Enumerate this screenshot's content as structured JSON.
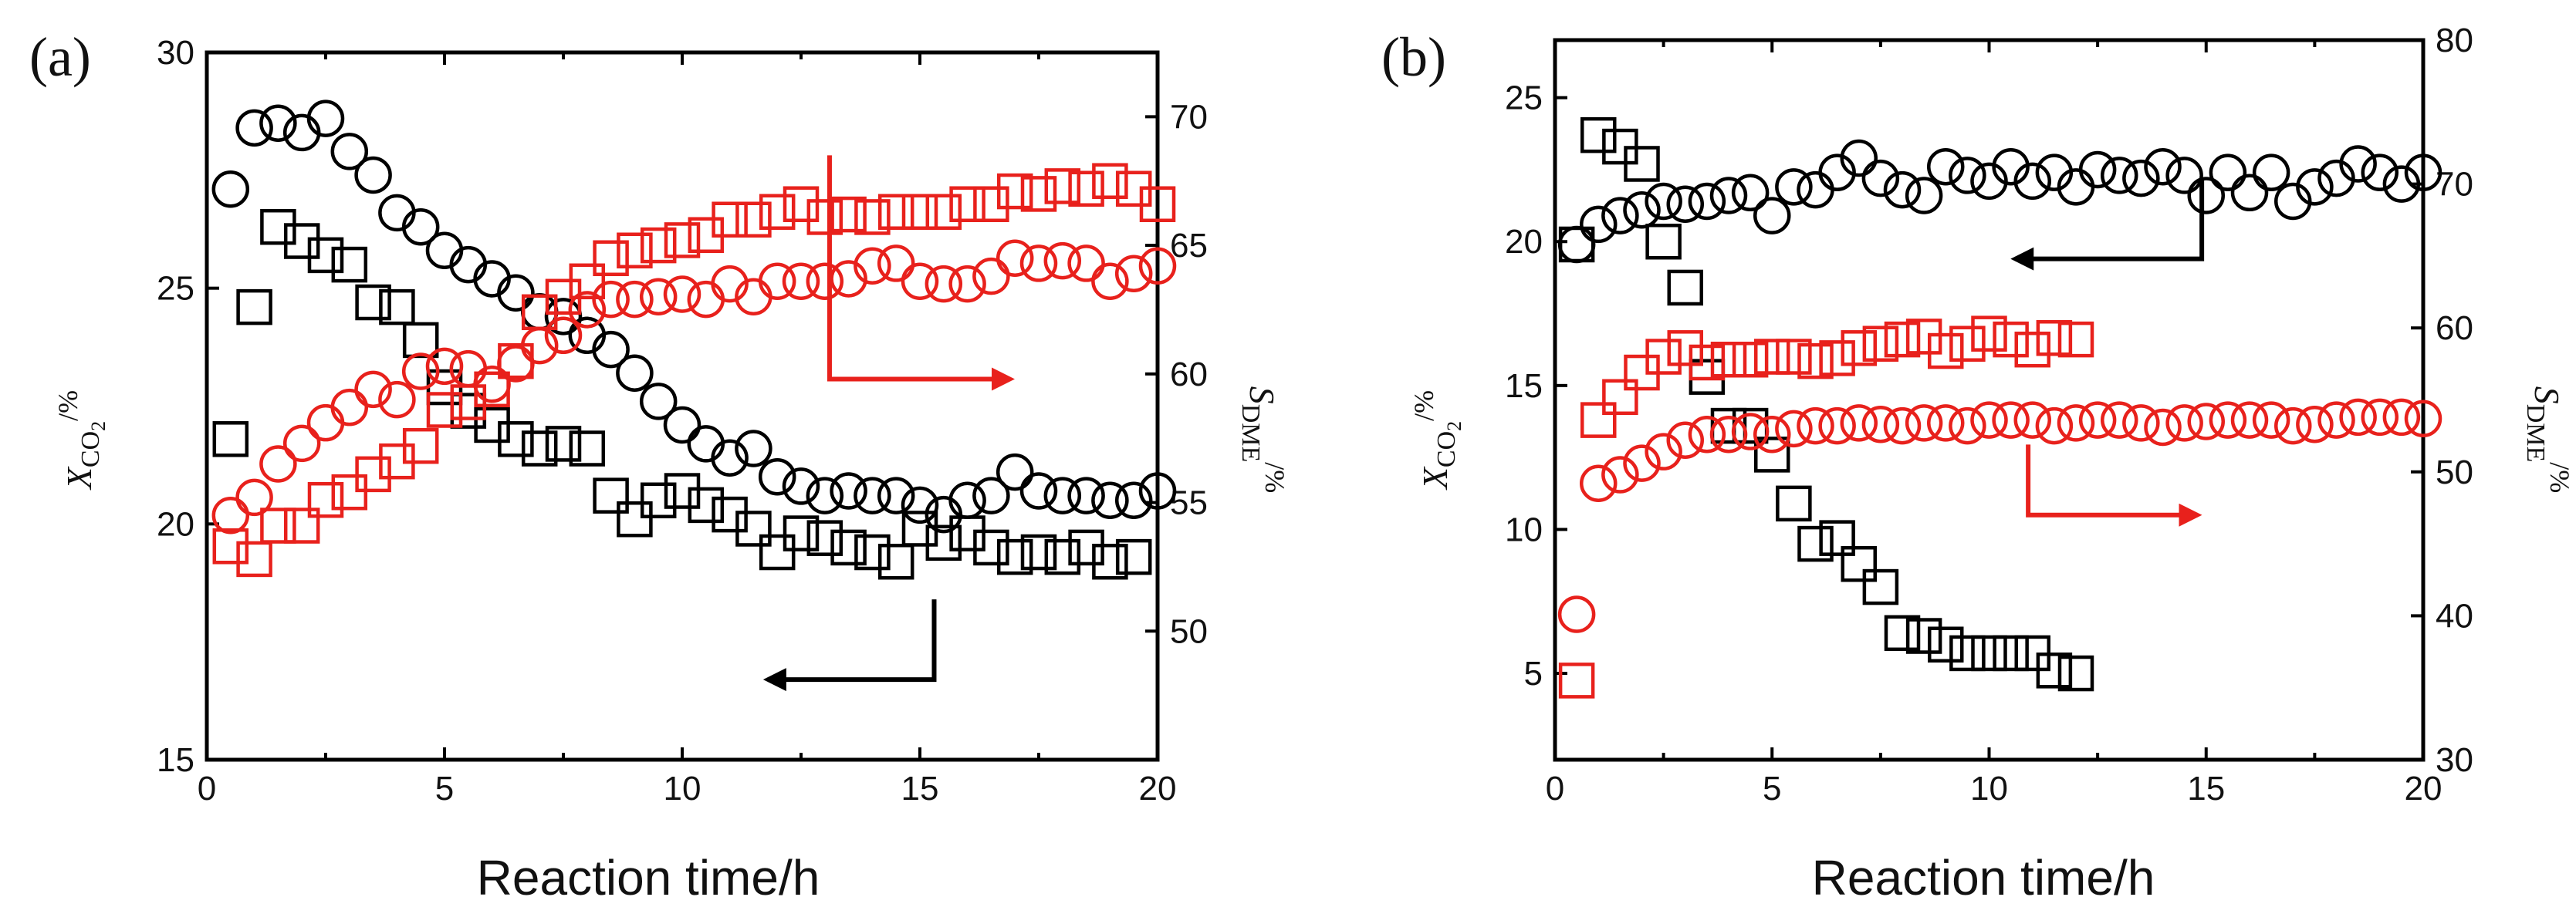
{
  "colors": {
    "black": "#000000",
    "red": "#e8211c"
  },
  "chart_data": [
    {
      "id": "a",
      "type": "scatter",
      "panel_label": "(a)",
      "xlabel": "Reaction time/h",
      "ylabel_left": {
        "main": "X",
        "sub": "CO",
        "sub2": "2",
        "unit": "/%"
      },
      "ylabel_right": {
        "main": "S",
        "sub": "DME",
        "unit": "/%"
      },
      "xlim": [
        0,
        20
      ],
      "ylim_left": [
        15,
        30
      ],
      "ylim_right": [
        45,
        72.5
      ],
      "xticks": [
        0,
        5,
        10,
        15,
        20
      ],
      "yticks_left": [
        15,
        20,
        25,
        30
      ],
      "yticks_right": [
        50,
        55,
        60,
        65,
        70
      ],
      "series": [
        {
          "name": "XCO2 circles",
          "marker": "circle",
          "color": "#000000",
          "axis": "left",
          "x": [
            0.5,
            1.0,
            1.5,
            2.0,
            2.5,
            3.0,
            3.5,
            4.0,
            4.5,
            5.0,
            5.5,
            6.0,
            6.5,
            7.0,
            7.5,
            8.0,
            8.5,
            9.0,
            9.5,
            10.0,
            10.5,
            11.0,
            11.5,
            12.0,
            12.5,
            13.0,
            13.5,
            14.0,
            14.5,
            15.0,
            15.5,
            16.0,
            16.5,
            17.0,
            17.5,
            18.0,
            18.5,
            19.0,
            19.5,
            20.0
          ],
          "y": [
            27.1,
            28.4,
            28.5,
            28.3,
            28.6,
            27.9,
            27.4,
            26.6,
            26.3,
            25.8,
            25.5,
            25.2,
            24.9,
            24.5,
            24.4,
            24.0,
            23.7,
            23.2,
            22.6,
            22.1,
            21.7,
            21.4,
            21.6,
            21.0,
            20.8,
            20.6,
            20.7,
            20.6,
            20.6,
            20.4,
            20.2,
            20.5,
            20.6,
            21.1,
            20.7,
            20.6,
            20.6,
            20.5,
            20.5,
            20.7
          ]
        },
        {
          "name": "XCO2 squares",
          "marker": "square",
          "color": "#000000",
          "axis": "left",
          "x": [
            0.5,
            1.0,
            1.5,
            2.0,
            2.5,
            3.0,
            3.5,
            4.0,
            4.5,
            5.0,
            5.5,
            6.0,
            6.5,
            7.0,
            7.5,
            8.0,
            8.5,
            9.0,
            9.5,
            10.0,
            10.5,
            11.0,
            11.5,
            12.0,
            12.5,
            13.0,
            13.5,
            14.0,
            14.5,
            15.0,
            15.5,
            16.0,
            16.5,
            17.0,
            17.5,
            18.0,
            18.5,
            19.0,
            19.5
          ],
          "y": [
            21.8,
            24.6,
            26.3,
            26.0,
            25.7,
            25.5,
            24.7,
            24.6,
            23.9,
            22.9,
            22.4,
            22.1,
            21.8,
            21.6,
            21.7,
            21.6,
            20.6,
            20.1,
            20.5,
            20.7,
            20.4,
            20.2,
            19.9,
            19.4,
            19.8,
            19.7,
            19.5,
            19.4,
            19.2,
            19.9,
            19.6,
            19.8,
            19.5,
            19.3,
            19.4,
            19.3,
            19.5,
            19.2,
            19.3
          ]
        },
        {
          "name": "SDME circles",
          "marker": "circle",
          "color": "#e8211c",
          "axis": "right",
          "x": [
            0.5,
            1.0,
            1.5,
            2.0,
            2.5,
            3.0,
            3.5,
            4.0,
            4.5,
            5.0,
            5.5,
            6.0,
            6.5,
            7.0,
            7.5,
            8.0,
            8.5,
            9.0,
            9.5,
            10.0,
            10.5,
            11.0,
            11.5,
            12.0,
            12.5,
            13.0,
            13.5,
            14.0,
            14.5,
            15.0,
            15.5,
            16.0,
            16.5,
            17.0,
            17.5,
            18.0,
            18.5,
            19.0,
            19.5,
            20.0
          ],
          "y": [
            54.5,
            55.2,
            56.5,
            57.3,
            58.1,
            58.7,
            59.4,
            59.0,
            60.1,
            60.3,
            60.2,
            59.6,
            60.4,
            61.1,
            61.5,
            62.5,
            62.9,
            62.9,
            63.0,
            63.1,
            62.9,
            63.5,
            63.0,
            63.6,
            63.6,
            63.6,
            63.7,
            64.2,
            64.3,
            63.6,
            63.5,
            63.5,
            63.8,
            64.5,
            64.3,
            64.4,
            64.3,
            63.6,
            63.9,
            64.2
          ]
        },
        {
          "name": "SDME squares",
          "marker": "square",
          "color": "#e8211c",
          "axis": "right",
          "x": [
            0.5,
            1.0,
            1.5,
            2.0,
            2.5,
            3.0,
            3.5,
            4.0,
            4.5,
            5.0,
            5.5,
            6.0,
            6.5,
            7.0,
            7.5,
            8.0,
            8.5,
            9.0,
            9.5,
            10.0,
            10.5,
            11.0,
            11.5,
            12.0,
            12.5,
            13.0,
            13.5,
            14.0,
            14.5,
            15.0,
            15.5,
            16.0,
            16.5,
            17.0,
            17.5,
            18.0,
            18.5,
            19.0,
            19.5,
            20.0
          ],
          "y": [
            53.3,
            52.8,
            54.1,
            54.1,
            55.1,
            55.4,
            56.1,
            56.6,
            57.2,
            58.6,
            58.9,
            59.4,
            60.5,
            62.4,
            63.0,
            63.6,
            64.5,
            64.8,
            65.0,
            65.2,
            65.4,
            66.0,
            66.0,
            66.3,
            66.6,
            66.1,
            66.2,
            66.1,
            66.3,
            66.3,
            66.3,
            66.6,
            66.6,
            67.1,
            67.0,
            67.3,
            67.2,
            67.5,
            67.2,
            66.6
          ]
        }
      ],
      "annotations": [
        {
          "kind": "arrow",
          "color": "#000000",
          "points": [
            [
              15.3,
              18.4
            ],
            [
              15.3,
              16.7
            ],
            [
              11.8,
              16.7
            ]
          ]
        },
        {
          "kind": "arrow",
          "color": "#e8211c",
          "points": [
            [
              13.1,
              68.5
            ],
            [
              13.1,
              59.8
            ],
            [
              16.9,
              59.8
            ]
          ]
        }
      ]
    },
    {
      "id": "b",
      "type": "scatter",
      "panel_label": "(b)",
      "xlabel": "Reaction time/h",
      "ylabel_left": {
        "main": "X",
        "sub": "CO",
        "sub2": "2",
        "unit": "/%"
      },
      "ylabel_right": {
        "main": "S",
        "sub": "DME",
        "unit": "/%"
      },
      "xlim": [
        0,
        20
      ],
      "ylim_left": [
        2,
        27
      ],
      "ylim_right": [
        30,
        80
      ],
      "xticks": [
        0,
        5,
        10,
        15,
        20
      ],
      "yticks_left": [
        5,
        10,
        15,
        20,
        25
      ],
      "yticks_right": [
        30,
        40,
        50,
        60,
        70,
        80
      ],
      "series": [
        {
          "name": "XCO2 circles",
          "marker": "circle",
          "color": "#000000",
          "axis": "left",
          "x": [
            0.5,
            1.0,
            1.5,
            2.0,
            2.5,
            3.0,
            3.5,
            4.0,
            4.5,
            5.0,
            5.5,
            6.0,
            6.5,
            7.0,
            7.5,
            8.0,
            8.5,
            9.0,
            9.5,
            10.0,
            10.5,
            11.0,
            11.5,
            12.0,
            12.5,
            13.0,
            13.5,
            14.0,
            14.5,
            15.0,
            15.5,
            16.0,
            16.5,
            17.0,
            17.5,
            18.0,
            18.5,
            19.0,
            19.5,
            20.0
          ],
          "y": [
            19.9,
            20.6,
            20.9,
            21.1,
            21.4,
            21.3,
            21.4,
            21.6,
            21.7,
            20.9,
            21.9,
            21.8,
            22.4,
            22.9,
            22.2,
            21.8,
            21.6,
            22.6,
            22.3,
            22.1,
            22.6,
            22.1,
            22.4,
            21.9,
            22.5,
            22.3,
            22.2,
            22.6,
            22.3,
            21.6,
            22.4,
            21.7,
            22.4,
            21.4,
            21.9,
            22.2,
            22.7,
            22.4,
            22.0,
            22.4
          ]
        },
        {
          "name": "XCO2 squares",
          "marker": "square",
          "color": "#000000",
          "axis": "left",
          "x": [
            0.5,
            1.0,
            1.5,
            2.0,
            2.5,
            3.0,
            3.5,
            4.0,
            4.5,
            5.0,
            5.5,
            6.0,
            6.5,
            7.0,
            7.5,
            8.0,
            8.5,
            9.0,
            9.5,
            10.0,
            10.5,
            11.0,
            11.5,
            12.0
          ],
          "y": [
            19.9,
            23.7,
            23.3,
            22.7,
            20.0,
            18.4,
            15.3,
            13.6,
            13.6,
            12.6,
            10.9,
            9.5,
            9.7,
            8.8,
            8.0,
            6.4,
            6.3,
            6.0,
            5.7,
            5.7,
            5.7,
            5.7,
            5.1,
            5.0
          ]
        },
        {
          "name": "SDME circles",
          "marker": "circle",
          "color": "#e8211c",
          "axis": "right",
          "x": [
            0.5,
            1.0,
            1.5,
            2.0,
            2.5,
            3.0,
            3.5,
            4.0,
            4.5,
            5.0,
            5.5,
            6.0,
            6.5,
            7.0,
            7.5,
            8.0,
            8.5,
            9.0,
            9.5,
            10.0,
            10.5,
            11.0,
            11.5,
            12.0,
            12.5,
            13.0,
            13.5,
            14.0,
            14.5,
            15.0,
            15.5,
            16.0,
            16.5,
            17.0,
            17.5,
            18.0,
            18.5,
            19.0,
            19.5,
            20.0
          ],
          "y": [
            40.1,
            49.2,
            49.8,
            50.6,
            51.4,
            52.2,
            52.6,
            52.6,
            52.8,
            52.6,
            53.0,
            53.2,
            53.2,
            53.4,
            53.3,
            53.2,
            53.4,
            53.4,
            53.2,
            53.6,
            53.6,
            53.6,
            53.2,
            53.4,
            53.6,
            53.6,
            53.4,
            53.1,
            53.4,
            53.5,
            53.6,
            53.6,
            53.6,
            53.2,
            53.3,
            53.6,
            53.8,
            53.8,
            53.8,
            53.7
          ]
        },
        {
          "name": "SDME squares",
          "marker": "square",
          "color": "#e8211c",
          "axis": "right",
          "x": [
            0.5,
            1.0,
            1.5,
            2.0,
            2.5,
            3.0,
            3.5,
            4.0,
            4.5,
            5.0,
            5.5,
            6.0,
            6.5,
            7.0,
            7.5,
            8.0,
            8.5,
            9.0,
            9.5,
            10.0,
            10.5,
            11.0,
            11.5,
            12.0
          ],
          "y": [
            35.5,
            53.6,
            55.2,
            56.9,
            58.0,
            58.6,
            57.6,
            57.8,
            57.8,
            58.0,
            58.0,
            57.7,
            57.9,
            58.6,
            58.9,
            59.2,
            59.4,
            58.4,
            58.9,
            59.6,
            59.2,
            58.5,
            59.3,
            59.2
          ]
        }
      ],
      "annotations": [
        {
          "kind": "arrow",
          "color": "#000000",
          "points": [
            [
              14.9,
              22.2
            ],
            [
              14.9,
              19.4
            ],
            [
              10.6,
              19.4
            ]
          ]
        },
        {
          "kind": "arrow",
          "color": "#e8211c",
          "points": [
            [
              10.9,
              51.9
            ],
            [
              10.9,
              47.0
            ],
            [
              14.8,
              47.0
            ]
          ]
        }
      ]
    }
  ]
}
